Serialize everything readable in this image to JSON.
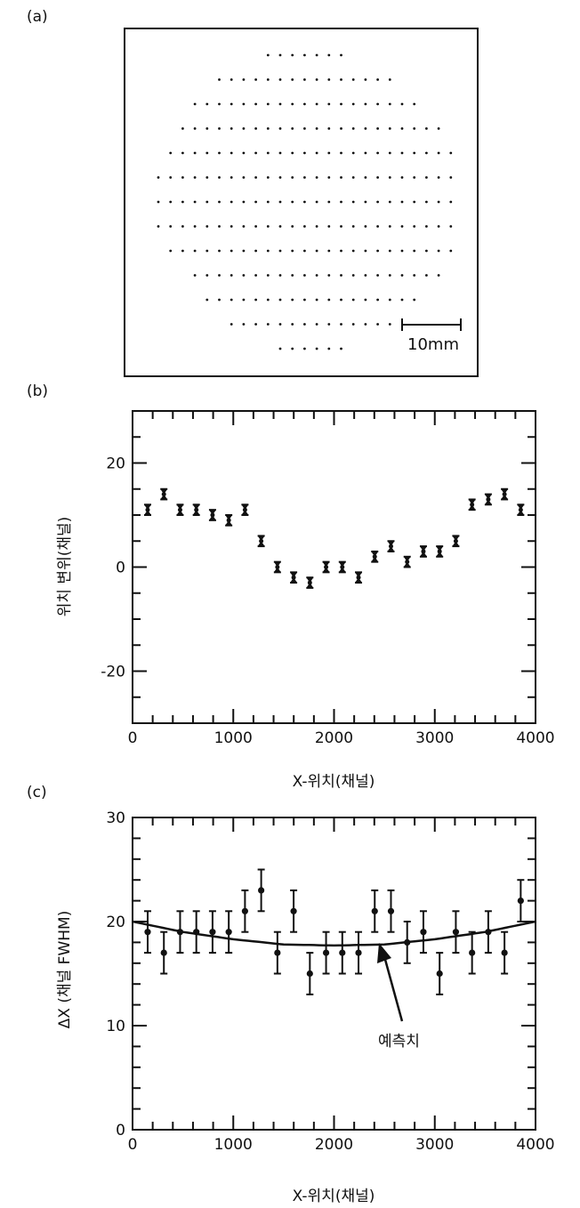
{
  "chart_data": [
    {
      "panel_label": "(a)",
      "type": "scatter",
      "description_grid": "hole pattern; each row lists first and last column index of dots",
      "rows": [
        [
          9,
          15
        ],
        [
          5,
          19
        ],
        [
          3,
          21
        ],
        [
          2,
          23
        ],
        [
          1,
          24
        ],
        [
          0,
          24
        ],
        [
          0,
          24
        ],
        [
          0,
          24
        ],
        [
          1,
          24
        ],
        [
          3,
          23
        ],
        [
          4,
          21
        ],
        [
          6,
          19
        ],
        [
          10,
          15
        ]
      ],
      "scale_bar_label": "10mm"
    },
    {
      "panel_label": "(b)",
      "type": "scatter",
      "xlabel": "X-위치(채널)",
      "ylabel": "위치 변위(채널)",
      "xlim": [
        0,
        4000
      ],
      "ylim": [
        -30,
        30
      ],
      "xticks": [
        "0",
        "1000",
        "2000",
        "3000",
        "4000"
      ],
      "xtick_values": [
        0,
        1000,
        2000,
        3000,
        4000
      ],
      "yticks": [
        "20",
        "0",
        "-20"
      ],
      "ytick_values": [
        20,
        0,
        -20
      ],
      "x": [
        150,
        311,
        472,
        633,
        794,
        955,
        1116,
        1277,
        1438,
        1599,
        1760,
        1921,
        2082,
        2243,
        2404,
        2565,
        2726,
        2887,
        3048,
        3209,
        3370,
        3531,
        3692,
        3853
      ],
      "y": [
        11,
        14,
        11,
        11,
        10,
        9,
        11,
        5,
        0,
        -2,
        -3,
        0,
        0,
        -2,
        2,
        4,
        1,
        3,
        3,
        5,
        12,
        13,
        14,
        11
      ],
      "error": 1
    },
    {
      "panel_label": "(c)",
      "type": "scatter",
      "xlabel": "X-위치(채널)",
      "ylabel": "ΔX (채널 FWHM)",
      "xlim": [
        0,
        4000
      ],
      "ylim": [
        0,
        30
      ],
      "xticks": [
        "0",
        "1000",
        "2000",
        "3000",
        "4000"
      ],
      "xtick_values": [
        0,
        1000,
        2000,
        3000,
        4000
      ],
      "yticks": [
        "30",
        "20",
        "10",
        "0"
      ],
      "ytick_values": [
        30,
        20,
        10,
        0
      ],
      "x": [
        150,
        311,
        472,
        633,
        794,
        955,
        1116,
        1277,
        1438,
        1599,
        1760,
        1921,
        2082,
        2243,
        2404,
        2565,
        2726,
        2887,
        3048,
        3209,
        3370,
        3531,
        3692,
        3853
      ],
      "y": [
        19,
        17,
        19,
        19,
        19,
        19,
        21,
        23,
        17,
        21,
        15,
        17,
        17,
        17,
        21,
        21,
        18,
        19,
        15,
        19,
        17,
        19,
        17,
        22
      ],
      "error": 2,
      "prediction_curve": {
        "x": [
          0,
          500,
          1000,
          1500,
          2000,
          2500,
          3000,
          3500,
          4000
        ],
        "y": [
          20.0,
          19.0,
          18.3,
          17.8,
          17.7,
          17.8,
          18.3,
          19.0,
          20.0
        ]
      },
      "annotation": "예측치"
    }
  ]
}
